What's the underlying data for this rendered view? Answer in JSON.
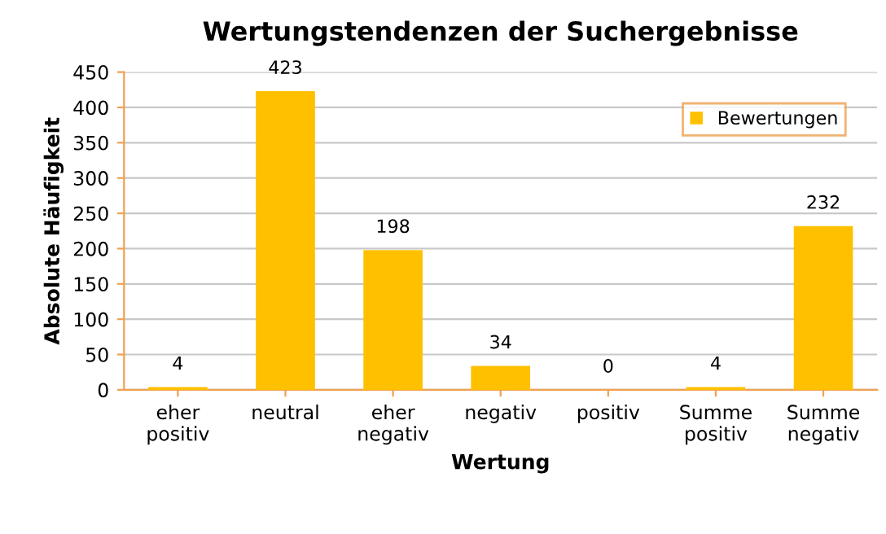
{
  "chart_data": {
    "type": "bar",
    "title": "Wertungstendenzen der Suchergebnisse",
    "xlabel": "Wertung",
    "ylabel": "Absolute Häufigkeit",
    "categories": [
      "eher\npositiv",
      "neutral",
      "eher\nnegativ",
      "negativ",
      "positiv",
      "Summe\npositiv",
      "Summe\nnegativ"
    ],
    "series": [
      {
        "name": "Bewertungen",
        "color": "#ffc000",
        "values": [
          4,
          423,
          198,
          34,
          0,
          4,
          232
        ]
      }
    ],
    "ylim": [
      0,
      450
    ],
    "yticks": [
      0,
      50,
      100,
      150,
      200,
      250,
      300,
      350,
      400,
      450
    ],
    "grid": "y",
    "legend": "top right",
    "data_labels": true
  }
}
